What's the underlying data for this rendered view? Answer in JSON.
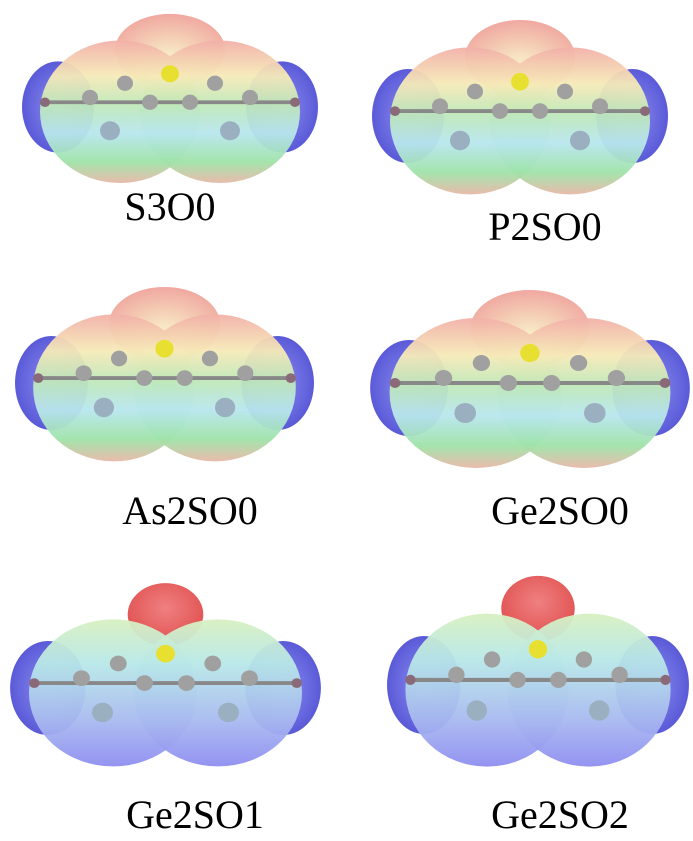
{
  "panels": [
    {
      "label": "S3O0"
    },
    {
      "label": "P2SO0"
    },
    {
      "label": "As2SO0"
    },
    {
      "label": "Ge2SO0"
    },
    {
      "label": "Ge2SO1"
    },
    {
      "label": "Ge2SO2"
    }
  ]
}
